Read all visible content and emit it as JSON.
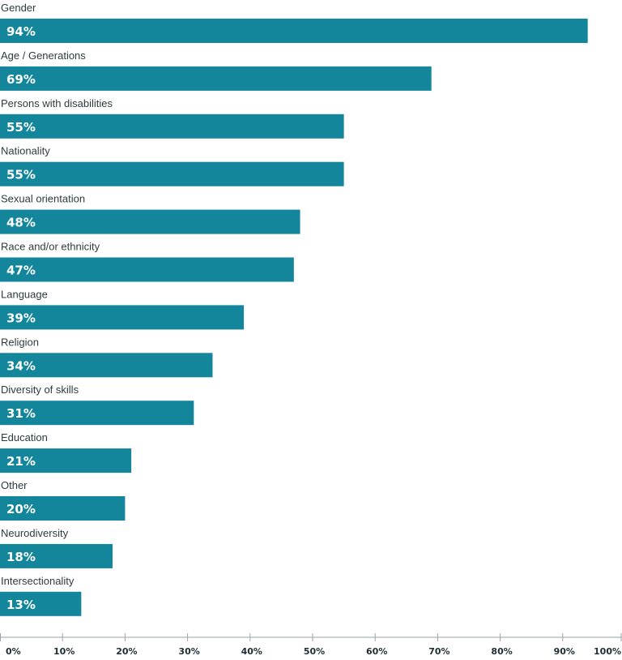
{
  "chart_data": {
    "type": "bar",
    "orientation": "horizontal",
    "categories": [
      "Gender",
      "Age / Generations",
      "Persons with disabilities",
      "Nationality",
      "Sexual orientation",
      "Race and/or ethnicity",
      "Language",
      "Religion",
      "Diversity of skills",
      "Education",
      "Other",
      "Neurodiversity",
      "Intersectionality"
    ],
    "values": [
      94,
      69,
      55,
      55,
      48,
      47,
      39,
      34,
      31,
      21,
      20,
      18,
      13
    ],
    "value_labels": [
      "94%",
      "69%",
      "55%",
      "55%",
      "48%",
      "47%",
      "39%",
      "34%",
      "31%",
      "21%",
      "20%",
      "18%",
      "13%"
    ],
    "xlim": [
      0,
      100
    ],
    "x_ticks": [
      0,
      10,
      20,
      30,
      40,
      50,
      60,
      70,
      80,
      90,
      100
    ],
    "x_tick_labels": [
      "0%",
      "10%",
      "20%",
      "30%",
      "40%",
      "50%",
      "60%",
      "70%",
      "80%",
      "90%",
      "100%"
    ],
    "bar_color": "#13869b",
    "grid": false
  }
}
